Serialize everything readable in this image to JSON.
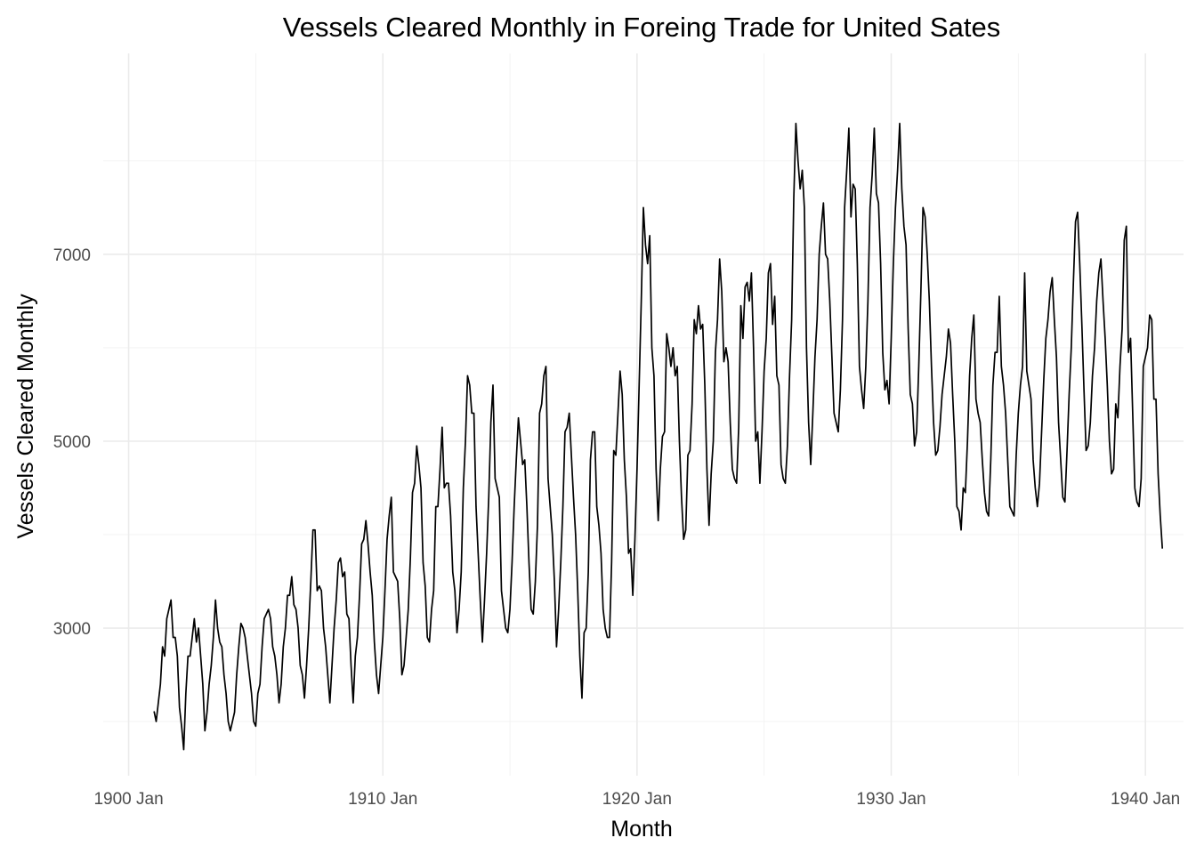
{
  "chart_data": {
    "type": "line",
    "title": "Vessels Cleared Monthly in Foreing Trade for United Sates",
    "xlabel": "Month",
    "ylabel": "Vessels Cleared Monthly",
    "x_ticks": [
      "1900 Jan",
      "1910 Jan",
      "1920 Jan",
      "1930 Jan",
      "1940 Jan"
    ],
    "y_ticks": [
      "3000",
      "5000",
      "7000"
    ],
    "xlim": [
      "1899 Jan",
      "1941 Jul"
    ],
    "ylim": [
      1420,
      9150
    ],
    "grid": true,
    "line_color": "#000000",
    "series": [
      {
        "x_start": "1901 Jan",
        "frequency": "monthly",
        "values": [
          2110,
          2000,
          2200,
          2400,
          2800,
          2700,
          3100,
          3200,
          3300,
          2900,
          2900,
          2700,
          2150,
          1950,
          1700,
          2300,
          2700,
          2700,
          2900,
          3100,
          2850,
          3000,
          2700,
          2400,
          1900,
          2100,
          2400,
          2600,
          2900,
          3300,
          3000,
          2850,
          2800,
          2500,
          2300,
          2000,
          1900,
          2000,
          2100,
          2500,
          2800,
          3050,
          3000,
          2900,
          2700,
          2500,
          2300,
          2000,
          1950,
          2300,
          2400,
          2800,
          3100,
          3150,
          3200,
          3100,
          2800,
          2700,
          2500,
          2200,
          2400,
          2800,
          3000,
          3350,
          3350,
          3550,
          3250,
          3200,
          3000,
          2600,
          2500,
          2250,
          2600,
          3000,
          3500,
          4050,
          4050,
          3400,
          3450,
          3400,
          3000,
          2800,
          2500,
          2200,
          2600,
          3000,
          3300,
          3700,
          3750,
          3550,
          3600,
          3150,
          3100,
          2600,
          2200,
          2700,
          2900,
          3350,
          3900,
          3950,
          4150,
          3900,
          3600,
          3350,
          2850,
          2500,
          2300,
          2600,
          2900,
          3400,
          3950,
          4200,
          4400,
          3600,
          3550,
          3500,
          3100,
          2500,
          2600,
          2900,
          3200,
          3750,
          4450,
          4550,
          4950,
          4750,
          4500,
          3700,
          3450,
          2900,
          2850,
          3200,
          3400,
          4300,
          4300,
          4700,
          5150,
          4500,
          4550,
          4550,
          4200,
          3600,
          3400,
          2950,
          3200,
          3600,
          4500,
          5000,
          5700,
          5600,
          5300,
          5300,
          4300,
          3800,
          3300,
          2850,
          3300,
          3800,
          4400,
          5200,
          5600,
          4600,
          4500,
          4400,
          3400,
          3200,
          3000,
          2950,
          3200,
          3700,
          4300,
          4800,
          5250,
          5000,
          4750,
          4800,
          4300,
          3700,
          3200,
          3150,
          3500,
          4100,
          5300,
          5400,
          5700,
          5800,
          4600,
          4300,
          4000,
          3500,
          2800,
          3200,
          3700,
          4300,
          5100,
          5150,
          5300,
          4850,
          4400,
          4000,
          3400,
          2700,
          2250,
          2950,
          3000,
          3600,
          4800,
          5100,
          5100,
          4300,
          4100,
          3800,
          3200,
          3000,
          2900,
          2900,
          3700,
          4900,
          4850,
          5300,
          5750,
          5500,
          4800,
          4400,
          3800,
          3850,
          3350,
          3950,
          4700,
          5600,
          6500,
          7500,
          7100,
          6900,
          7200,
          6000,
          5700,
          4700,
          4150,
          4700,
          5050,
          5100,
          6150,
          6000,
          5800,
          6000,
          5700,
          5800,
          5000,
          4400,
          3950,
          4050,
          4850,
          4900,
          5400,
          6300,
          6150,
          6450,
          6200,
          6250,
          5600,
          4700,
          4100,
          4650,
          5000,
          5950,
          6300,
          6950,
          6600,
          5850,
          6000,
          5850,
          5200,
          4700,
          4600,
          4550,
          5150,
          6450,
          6100,
          6650,
          6700,
          6500,
          6800,
          6000,
          5000,
          5100,
          4550,
          5100,
          5750,
          6100,
          6800,
          6900,
          6250,
          6550,
          5700,
          5600,
          4750,
          4600,
          4550,
          4950,
          5700,
          6300,
          7600,
          8400,
          8000,
          7700,
          7900,
          7500,
          6000,
          5200,
          4750,
          5300,
          5900,
          6300,
          7000,
          7300,
          7550,
          7000,
          6950,
          6500,
          5900,
          5300,
          5200,
          5100,
          5550,
          6300,
          7500,
          7900,
          8350,
          7400,
          7750,
          7700,
          6900,
          5800,
          5550,
          5350,
          5800,
          6500,
          7500,
          7850,
          8350,
          7650,
          7550,
          6900,
          5950,
          5550,
          5650,
          5400,
          6100,
          6900,
          7500,
          7900,
          8400,
          7700,
          7300,
          7100,
          6200,
          5500,
          5400,
          4950,
          5100,
          5800,
          6600,
          7500,
          7400,
          7000,
          6500,
          5800,
          5200,
          4850,
          4900,
          5150,
          5500,
          5700,
          5900,
          6200,
          6050,
          5500,
          5000,
          4300,
          4250,
          4050,
          4500,
          4450,
          5000,
          5700,
          6100,
          6350,
          5450,
          5300,
          5200,
          4800,
          4450,
          4250,
          4200,
          4800,
          5600,
          5950,
          5950,
          6550,
          5800,
          5600,
          5300,
          4800,
          4300,
          4250,
          4200,
          4850,
          5300,
          5600,
          5800,
          6800,
          5750,
          5600,
          5450,
          4800,
          4500,
          4300,
          4550,
          5100,
          5650,
          6100,
          6300,
          6600,
          6750,
          6300,
          5900,
          5200,
          4800,
          4400,
          4350,
          4900,
          5500,
          6000,
          6700,
          7350,
          7450,
          6900,
          6250,
          5550,
          4900,
          4950,
          5200,
          5700,
          6000,
          6500,
          6800,
          6950,
          6500,
          6100,
          5600,
          5000,
          4650,
          4700,
          5400,
          5250,
          5800,
          6200,
          7150,
          7300,
          5950,
          6100,
          5300,
          4500,
          4350,
          4300,
          4600,
          5800,
          5900,
          6000,
          6350,
          6300,
          5450,
          5450,
          4650,
          4200,
          3850
        ]
      }
    ]
  }
}
